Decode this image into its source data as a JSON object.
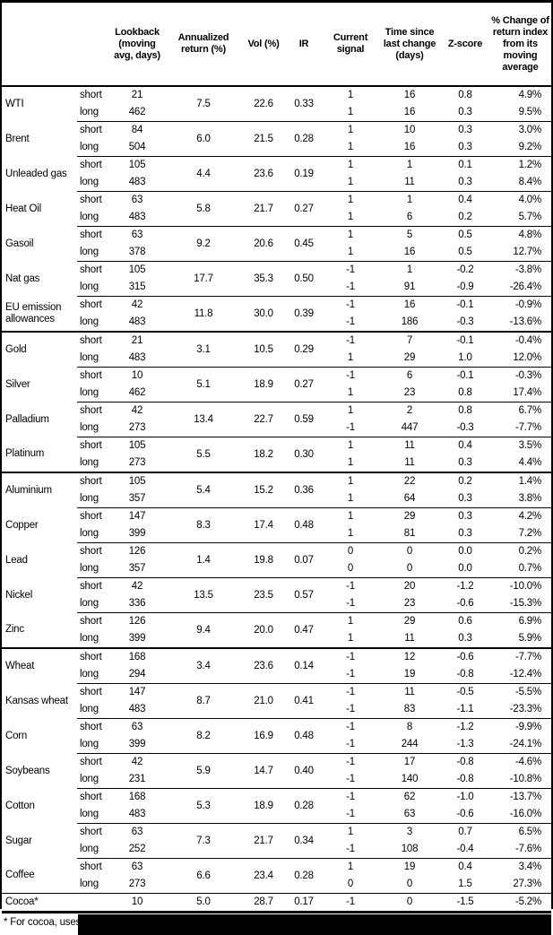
{
  "table": {
    "headers": {
      "name": "",
      "leg": "",
      "lookback": "Lookback (moving avg, days)",
      "annualized": "Annualized return (%)",
      "vol": "Vol (%)",
      "ir": "IR",
      "signal": "Current signal",
      "time": "Time since last change (days)",
      "zscore": "Z-score",
      "change": "% Change of return index from its moving average"
    },
    "groups": [
      {
        "name": "WTI",
        "annualized": "7.5",
        "vol": "22.6",
        "ir": "0.33",
        "rows": [
          {
            "leg": "short",
            "lookback": "21",
            "signal": "1",
            "time": "16",
            "z": "0.8",
            "change": "4.9%"
          },
          {
            "leg": "long",
            "lookback": "462",
            "signal": "1",
            "time": "16",
            "z": "0.3",
            "change": "9.5%"
          }
        ]
      },
      {
        "name": "Brent",
        "annualized": "6.0",
        "vol": "21.5",
        "ir": "0.28",
        "rows": [
          {
            "leg": "short",
            "lookback": "84",
            "signal": "1",
            "time": "10",
            "z": "0.3",
            "change": "3.0%"
          },
          {
            "leg": "long",
            "lookback": "504",
            "signal": "1",
            "time": "16",
            "z": "0.3",
            "change": "9.2%"
          }
        ]
      },
      {
        "name": "Unleaded gas",
        "annualized": "4.4",
        "vol": "23.6",
        "ir": "0.19",
        "rows": [
          {
            "leg": "short",
            "lookback": "105",
            "signal": "1",
            "time": "1",
            "z": "0.1",
            "change": "1.2%"
          },
          {
            "leg": "long",
            "lookback": "483",
            "signal": "1",
            "time": "11",
            "z": "0.3",
            "change": "8.4%"
          }
        ]
      },
      {
        "name": "Heat Oil",
        "annualized": "5.8",
        "vol": "21.7",
        "ir": "0.27",
        "rows": [
          {
            "leg": "short",
            "lookback": "63",
            "signal": "1",
            "time": "1",
            "z": "0.4",
            "change": "4.0%"
          },
          {
            "leg": "long",
            "lookback": "483",
            "signal": "1",
            "time": "6",
            "z": "0.2",
            "change": "5.7%"
          }
        ]
      },
      {
        "name": "Gasoil",
        "annualized": "9.2",
        "vol": "20.6",
        "ir": "0.45",
        "rows": [
          {
            "leg": "short",
            "lookback": "63",
            "signal": "1",
            "time": "5",
            "z": "0.5",
            "change": "4.8%"
          },
          {
            "leg": "long",
            "lookback": "378",
            "signal": "1",
            "time": "16",
            "z": "0.5",
            "change": "12.7%"
          }
        ]
      },
      {
        "name": "Nat gas",
        "annualized": "17.7",
        "vol": "35.3",
        "ir": "0.50",
        "rows": [
          {
            "leg": "short",
            "lookback": "105",
            "signal": "-1",
            "time": "1",
            "z": "-0.2",
            "change": "-3.8%"
          },
          {
            "leg": "long",
            "lookback": "315",
            "signal": "-1",
            "time": "91",
            "z": "-0.9",
            "change": "-26.4%"
          }
        ]
      },
      {
        "name": "EU emission allowances",
        "annualized": "11.8",
        "vol": "30.0",
        "ir": "0.39",
        "rows": [
          {
            "leg": "short",
            "lookback": "42",
            "signal": "-1",
            "time": "16",
            "z": "-0.1",
            "change": "-0.9%"
          },
          {
            "leg": "long",
            "lookback": "483",
            "signal": "-1",
            "time": "186",
            "z": "-0.3",
            "change": "-13.6%"
          }
        ]
      },
      {
        "name": "Gold",
        "section_start": true,
        "annualized": "3.1",
        "vol": "10.5",
        "ir": "0.29",
        "rows": [
          {
            "leg": "short",
            "lookback": "21",
            "signal": "-1",
            "time": "7",
            "z": "-0.1",
            "change": "-0.4%"
          },
          {
            "leg": "long",
            "lookback": "483",
            "signal": "1",
            "time": "29",
            "z": "1.0",
            "change": "12.0%"
          }
        ]
      },
      {
        "name": "Silver",
        "annualized": "5.1",
        "vol": "18.9",
        "ir": "0.27",
        "rows": [
          {
            "leg": "short",
            "lookback": "10",
            "signal": "-1",
            "time": "6",
            "z": "-0.1",
            "change": "-0.3%"
          },
          {
            "leg": "long",
            "lookback": "462",
            "signal": "1",
            "time": "23",
            "z": "0.8",
            "change": "17.4%"
          }
        ]
      },
      {
        "name": "Palladium",
        "annualized": "13.4",
        "vol": "22.7",
        "ir": "0.59",
        "rows": [
          {
            "leg": "short",
            "lookback": "42",
            "signal": "1",
            "time": "2",
            "z": "0.8",
            "change": "6.7%"
          },
          {
            "leg": "long",
            "lookback": "273",
            "signal": "-1",
            "time": "447",
            "z": "-0.3",
            "change": "-7.7%"
          }
        ]
      },
      {
        "name": "Platinum",
        "annualized": "5.5",
        "vol": "18.2",
        "ir": "0.30",
        "rows": [
          {
            "leg": "short",
            "lookback": "105",
            "signal": "1",
            "time": "11",
            "z": "0.4",
            "change": "3.5%"
          },
          {
            "leg": "long",
            "lookback": "273",
            "signal": "1",
            "time": "11",
            "z": "0.3",
            "change": "4.4%"
          }
        ]
      },
      {
        "name": "Aluminium",
        "section_start": true,
        "annualized": "5.4",
        "vol": "15.2",
        "ir": "0.36",
        "rows": [
          {
            "leg": "short",
            "lookback": "105",
            "signal": "1",
            "time": "22",
            "z": "0.2",
            "change": "1.4%"
          },
          {
            "leg": "long",
            "lookback": "357",
            "signal": "1",
            "time": "64",
            "z": "0.3",
            "change": "3.8%"
          }
        ]
      },
      {
        "name": "Copper",
        "annualized": "8.3",
        "vol": "17.4",
        "ir": "0.48",
        "rows": [
          {
            "leg": "short",
            "lookback": "147",
            "signal": "1",
            "time": "29",
            "z": "0.3",
            "change": "4.2%"
          },
          {
            "leg": "long",
            "lookback": "399",
            "signal": "1",
            "time": "81",
            "z": "0.3",
            "change": "7.2%"
          }
        ]
      },
      {
        "name": "Lead",
        "annualized": "1.4",
        "vol": "19.8",
        "ir": "0.07",
        "rows": [
          {
            "leg": "short",
            "lookback": "126",
            "signal": "0",
            "time": "0",
            "z": "0.0",
            "change": "0.2%"
          },
          {
            "leg": "long",
            "lookback": "357",
            "signal": "0",
            "time": "0",
            "z": "0.0",
            "change": "0.7%"
          }
        ]
      },
      {
        "name": "Nickel",
        "annualized": "13.5",
        "vol": "23.5",
        "ir": "0.57",
        "rows": [
          {
            "leg": "short",
            "lookback": "42",
            "signal": "-1",
            "time": "20",
            "z": "-1.2",
            "change": "-10.0%"
          },
          {
            "leg": "long",
            "lookback": "336",
            "signal": "-1",
            "time": "23",
            "z": "-0.6",
            "change": "-15.3%"
          }
        ]
      },
      {
        "name": "Zinc",
        "annualized": "9.4",
        "vol": "20.0",
        "ir": "0.47",
        "rows": [
          {
            "leg": "short",
            "lookback": "126",
            "signal": "1",
            "time": "29",
            "z": "0.6",
            "change": "6.9%"
          },
          {
            "leg": "long",
            "lookback": "399",
            "signal": "1",
            "time": "11",
            "z": "0.3",
            "change": "5.9%"
          }
        ]
      },
      {
        "name": "Wheat",
        "section_start": true,
        "annualized": "3.4",
        "vol": "23.6",
        "ir": "0.14",
        "rows": [
          {
            "leg": "short",
            "lookback": "168",
            "signal": "-1",
            "time": "12",
            "z": "-0.6",
            "change": "-7.7%"
          },
          {
            "leg": "long",
            "lookback": "294",
            "signal": "-1",
            "time": "19",
            "z": "-0.8",
            "change": "-12.4%"
          }
        ]
      },
      {
        "name": "Kansas wheat",
        "annualized": "8.7",
        "vol": "21.0",
        "ir": "0.41",
        "rows": [
          {
            "leg": "short",
            "lookback": "147",
            "signal": "-1",
            "time": "11",
            "z": "-0.5",
            "change": "-5.5%"
          },
          {
            "leg": "long",
            "lookback": "483",
            "signal": "-1",
            "time": "83",
            "z": "-1.1",
            "change": "-23.3%"
          }
        ]
      },
      {
        "name": "Corn",
        "annualized": "8.2",
        "vol": "16.9",
        "ir": "0.48",
        "rows": [
          {
            "leg": "short",
            "lookback": "63",
            "signal": "-1",
            "time": "8",
            "z": "-1.2",
            "change": "-9.9%"
          },
          {
            "leg": "long",
            "lookback": "399",
            "signal": "-1",
            "time": "244",
            "z": "-1.3",
            "change": "-24.1%"
          }
        ]
      },
      {
        "name": "Soybeans",
        "annualized": "5.9",
        "vol": "14.7",
        "ir": "0.40",
        "rows": [
          {
            "leg": "short",
            "lookback": "42",
            "signal": "-1",
            "time": "17",
            "z": "-0.8",
            "change": "-4.6%"
          },
          {
            "leg": "long",
            "lookback": "231",
            "signal": "-1",
            "time": "140",
            "z": "-0.8",
            "change": "-10.8%"
          }
        ]
      },
      {
        "name": "Cotton",
        "annualized": "5.3",
        "vol": "18.9",
        "ir": "0.28",
        "rows": [
          {
            "leg": "short",
            "lookback": "168",
            "signal": "-1",
            "time": "62",
            "z": "-1.0",
            "change": "-13.7%"
          },
          {
            "leg": "long",
            "lookback": "483",
            "signal": "-1",
            "time": "63",
            "z": "-0.6",
            "change": "-16.0%"
          }
        ]
      },
      {
        "name": "Sugar",
        "annualized": "7.3",
        "vol": "21.7",
        "ir": "0.34",
        "rows": [
          {
            "leg": "short",
            "lookback": "63",
            "signal": "1",
            "time": "3",
            "z": "0.7",
            "change": "6.5%"
          },
          {
            "leg": "long",
            "lookback": "252",
            "signal": "-1",
            "time": "108",
            "z": "-0.4",
            "change": "-7.6%"
          }
        ]
      },
      {
        "name": "Coffee",
        "annualized": "6.6",
        "vol": "23.4",
        "ir": "0.28",
        "rows": [
          {
            "leg": "short",
            "lookback": "63",
            "signal": "1",
            "time": "19",
            "z": "0.4",
            "change": "3.4%"
          },
          {
            "leg": "long",
            "lookback": "273",
            "signal": "0",
            "time": "0",
            "z": "1.5",
            "change": "27.3%"
          }
        ]
      },
      {
        "name": "Cocoa*",
        "full_top": true,
        "annualized": "5.0",
        "vol": "28.7",
        "ir": "0.17",
        "rows": [
          {
            "leg": "",
            "lookback": "10",
            "signal": "-1",
            "time": "0",
            "z": "-1.5",
            "change": "-5.2%"
          }
        ]
      }
    ]
  },
  "footnote": {
    "visible_text": "* For cocoa, uses c"
  }
}
